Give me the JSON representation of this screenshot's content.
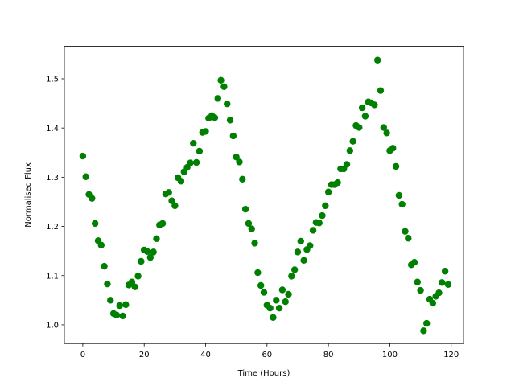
{
  "chart_data": {
    "type": "scatter",
    "title": "",
    "xlabel": "Time (Hours)",
    "ylabel": "Normalised Flux",
    "xlim": [
      -6,
      124
    ],
    "ylim": [
      0.962,
      1.566
    ],
    "xticks": [
      0,
      20,
      40,
      60,
      80,
      100,
      120
    ],
    "yticks": [
      1.0,
      1.1,
      1.2,
      1.3,
      1.4,
      1.5
    ],
    "grid": false,
    "legend": "none",
    "marker_color": "#008000",
    "series": [
      {
        "x": [
          0,
          1,
          2,
          3,
          4,
          5,
          6,
          7,
          8,
          9,
          10,
          11,
          12,
          13,
          14,
          15,
          16,
          17,
          18,
          19,
          20,
          21,
          22,
          23,
          24,
          25,
          26,
          27,
          28,
          29,
          30,
          31,
          32,
          33,
          34,
          35,
          36,
          37,
          38,
          39,
          40,
          41,
          42,
          43,
          44,
          45,
          46,
          47,
          48,
          49,
          50,
          51,
          52,
          53,
          54,
          55,
          56,
          57,
          58,
          59,
          60,
          61,
          62,
          63,
          64,
          65,
          66,
          67,
          68,
          69,
          70,
          71,
          72,
          73,
          74,
          75,
          76,
          77,
          78,
          79,
          80,
          81,
          82,
          83,
          84,
          85,
          86,
          87,
          88,
          89,
          90,
          91,
          92,
          93,
          94,
          95,
          96,
          97,
          98,
          99,
          100,
          101,
          102,
          103,
          104,
          105,
          106,
          107,
          108,
          109,
          110,
          111,
          112,
          113,
          114,
          115,
          116,
          117,
          118,
          119
        ],
        "y": [
          1.343,
          1.301,
          1.265,
          1.257,
          1.206,
          1.171,
          1.162,
          1.119,
          1.083,
          1.05,
          1.023,
          1.02,
          1.039,
          1.018,
          1.041,
          1.081,
          1.087,
          1.077,
          1.099,
          1.129,
          1.152,
          1.149,
          1.137,
          1.148,
          1.175,
          1.203,
          1.206,
          1.266,
          1.269,
          1.252,
          1.242,
          1.299,
          1.292,
          1.311,
          1.32,
          1.329,
          1.369,
          1.33,
          1.353,
          1.391,
          1.393,
          1.42,
          1.425,
          1.421,
          1.46,
          1.497,
          1.484,
          1.449,
          1.416,
          1.384,
          1.341,
          1.331,
          1.296,
          1.235,
          1.206,
          1.195,
          1.166,
          1.106,
          1.08,
          1.066,
          1.04,
          1.034,
          1.015,
          1.05,
          1.034,
          1.071,
          1.047,
          1.062,
          1.099,
          1.112,
          1.148,
          1.17,
          1.131,
          1.153,
          1.161,
          1.192,
          1.208,
          1.207,
          1.222,
          1.242,
          1.27,
          1.285,
          1.285,
          1.289,
          1.317,
          1.317,
          1.326,
          1.354,
          1.373,
          1.405,
          1.401,
          1.441,
          1.424,
          1.453,
          1.451,
          1.447,
          1.538,
          1.476,
          1.401,
          1.39,
          1.354,
          1.359,
          1.322,
          1.263,
          1.245,
          1.19,
          1.176,
          1.122,
          1.127,
          1.087,
          1.07,
          0.988,
          1.003,
          1.052,
          1.044,
          1.058,
          1.065,
          1.086,
          1.109,
          1.082
        ]
      }
    ]
  }
}
